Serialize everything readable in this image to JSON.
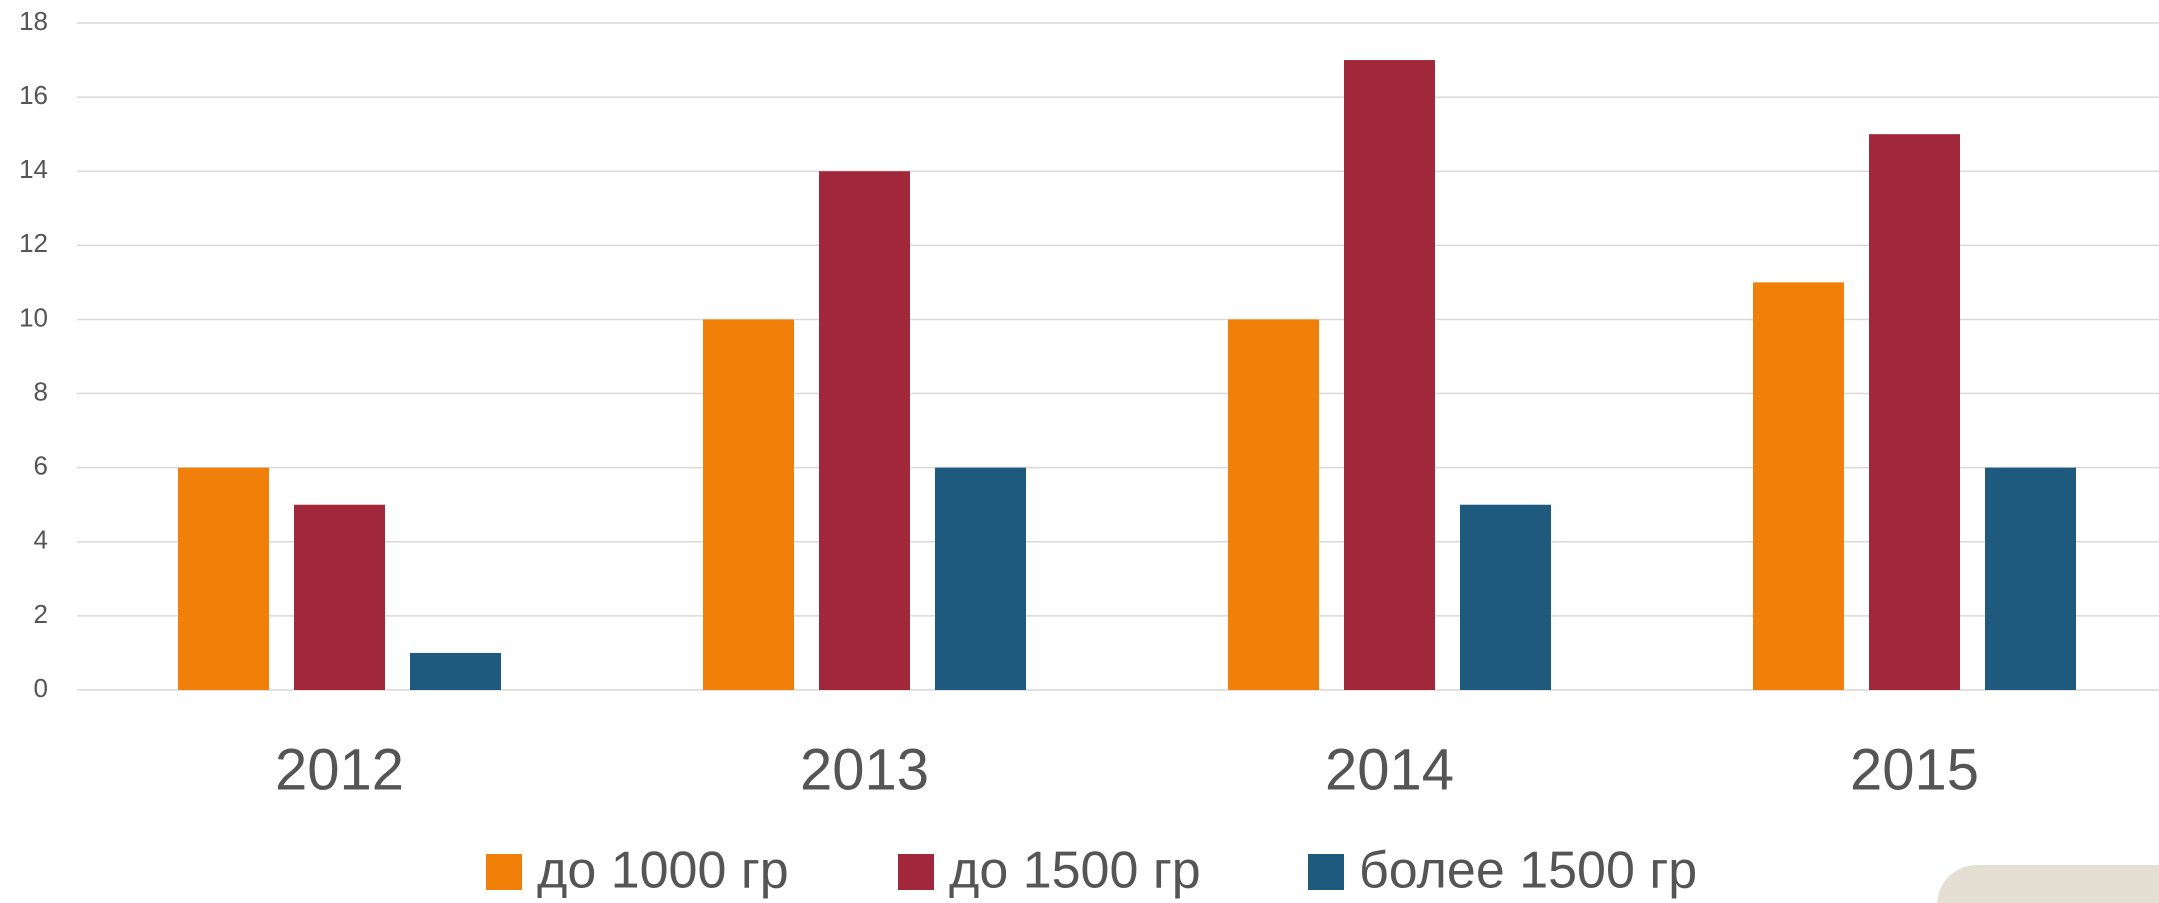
{
  "chart_data": {
    "type": "bar",
    "categories": [
      "2012",
      "2013",
      "2014",
      "2015"
    ],
    "series": [
      {
        "name": "до 1000 гр",
        "color": "#f0800a",
        "values": [
          6,
          10,
          10,
          11
        ]
      },
      {
        "name": "до 1500 гр",
        "color": "#a0283a",
        "values": [
          5,
          14,
          17,
          15
        ]
      },
      {
        "name": "более 1500 гр",
        "color": "#1d5a7e",
        "values": [
          1,
          6,
          5,
          6
        ]
      }
    ],
    "ylim": [
      0,
      18
    ],
    "yticks": [
      0,
      2,
      4,
      6,
      8,
      10,
      12,
      14,
      16,
      18
    ],
    "grid": true,
    "legend": "bottom"
  }
}
